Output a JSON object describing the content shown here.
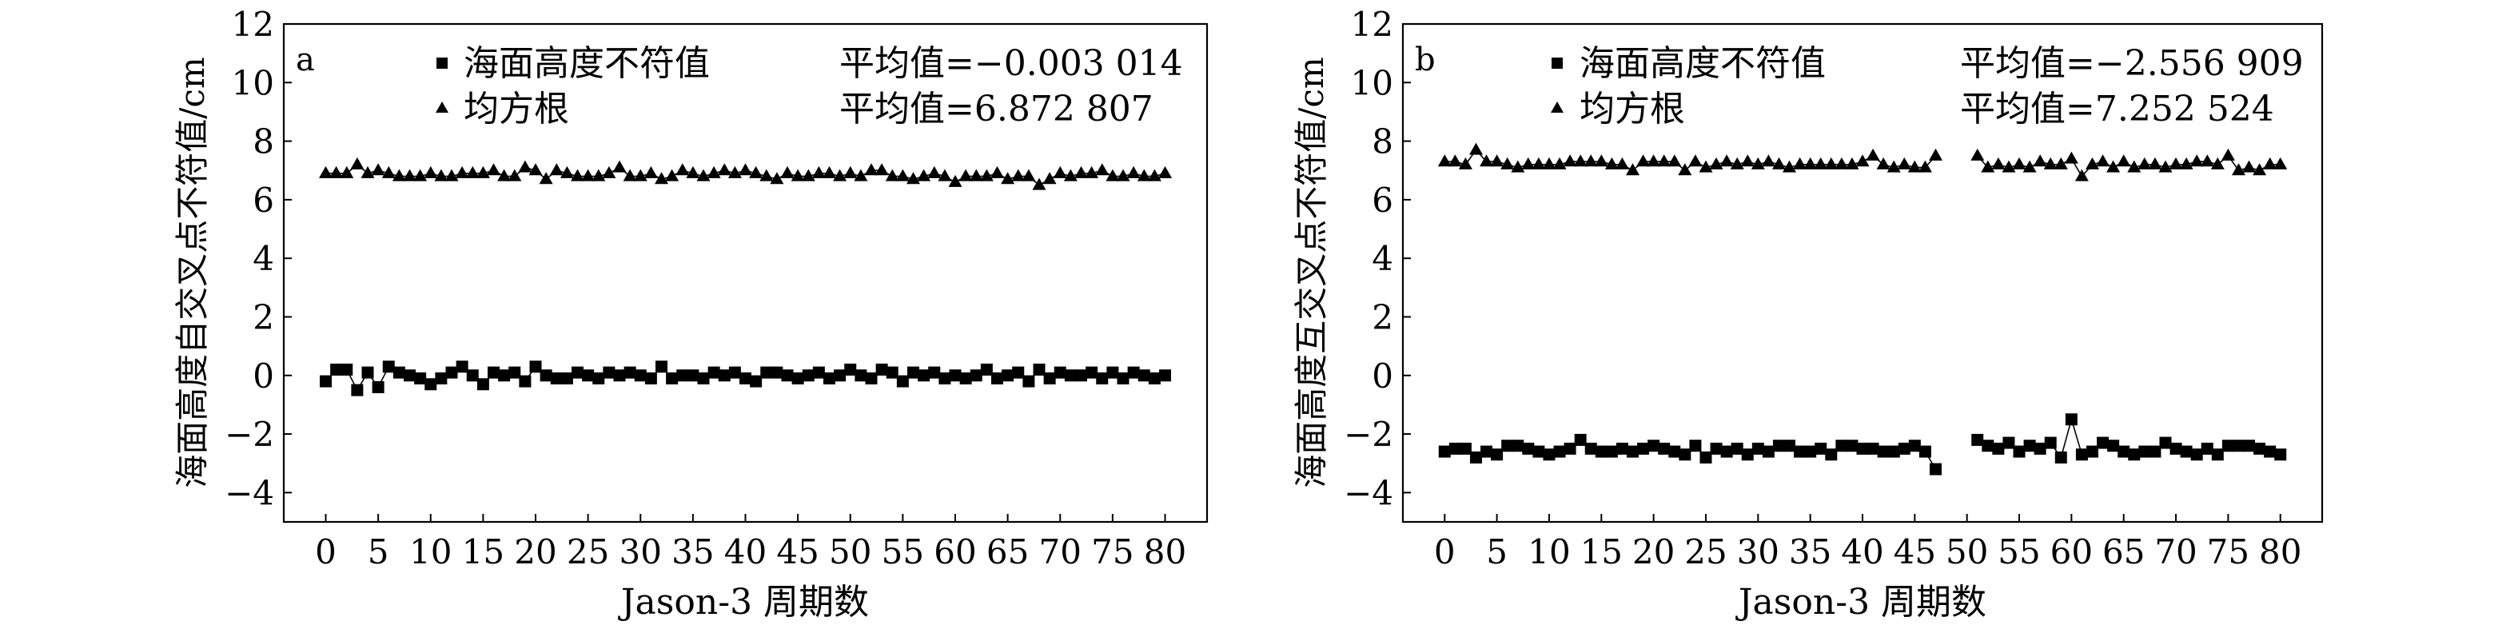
{
  "chart_data": [
    {
      "type": "scatter",
      "panel_label": "a",
      "xlabel": "Jason-3 周期数",
      "ylabel": "海面高度自交叉点不符值/cm",
      "xlim": [
        -4,
        84
      ],
      "ylim": [
        -5,
        12
      ],
      "xticks": [
        0,
        5,
        10,
        15,
        20,
        25,
        30,
        35,
        40,
        45,
        50,
        55,
        60,
        65,
        70,
        75,
        80
      ],
      "yticks": [
        -4,
        -2,
        0,
        2,
        4,
        6,
        8,
        10,
        12
      ],
      "grid": false,
      "legend": "top",
      "series": [
        {
          "name": "海面高度不符值",
          "marker": "square",
          "stat_label": "平均值=−0.003 014",
          "x": [
            0,
            1,
            2,
            3,
            4,
            5,
            6,
            7,
            8,
            9,
            10,
            11,
            12,
            13,
            14,
            15,
            16,
            17,
            18,
            19,
            20,
            21,
            22,
            23,
            24,
            25,
            26,
            27,
            28,
            29,
            30,
            31,
            32,
            33,
            34,
            35,
            36,
            37,
            38,
            39,
            40,
            41,
            42,
            43,
            44,
            45,
            46,
            47,
            48,
            49,
            50,
            51,
            52,
            53,
            54,
            55,
            56,
            57,
            58,
            59,
            60,
            61,
            62,
            63,
            64,
            65,
            66,
            67,
            68,
            69,
            70,
            71,
            72,
            73,
            74,
            75,
            76,
            77,
            78,
            79,
            80
          ],
          "values": [
            -0.2,
            0.2,
            0.2,
            -0.5,
            0.1,
            -0.4,
            0.3,
            0.1,
            0.0,
            -0.1,
            -0.3,
            -0.1,
            0.1,
            0.3,
            0.0,
            -0.3,
            0.1,
            0.0,
            0.1,
            -0.2,
            0.3,
            0.0,
            -0.1,
            -0.1,
            0.1,
            0.0,
            -0.1,
            0.1,
            0.0,
            0.1,
            0.0,
            -0.1,
            0.3,
            -0.1,
            0.0,
            0.0,
            -0.1,
            0.1,
            0.0,
            0.1,
            -0.1,
            -0.2,
            0.1,
            0.1,
            0.0,
            -0.1,
            0.0,
            0.1,
            -0.1,
            0.0,
            0.2,
            0.0,
            -0.1,
            0.2,
            0.1,
            -0.2,
            0.1,
            0.0,
            0.1,
            -0.1,
            0.0,
            -0.1,
            0.0,
            0.2,
            -0.1,
            0.0,
            0.1,
            -0.2,
            0.2,
            -0.1,
            0.1,
            0.0,
            0.0,
            0.1,
            -0.1,
            0.1,
            -0.1,
            0.1,
            0.0,
            -0.1,
            0.0
          ]
        },
        {
          "name": "均方根",
          "marker": "triangle",
          "stat_label": "平均值=6.872 807",
          "x": [
            0,
            1,
            2,
            3,
            4,
            5,
            6,
            7,
            8,
            9,
            10,
            11,
            12,
            13,
            14,
            15,
            16,
            17,
            18,
            19,
            20,
            21,
            22,
            23,
            24,
            25,
            26,
            27,
            28,
            29,
            30,
            31,
            32,
            33,
            34,
            35,
            36,
            37,
            38,
            39,
            40,
            41,
            42,
            43,
            44,
            45,
            46,
            47,
            48,
            49,
            50,
            51,
            52,
            53,
            54,
            55,
            56,
            57,
            58,
            59,
            60,
            61,
            62,
            63,
            64,
            65,
            66,
            67,
            68,
            69,
            70,
            71,
            72,
            73,
            74,
            75,
            76,
            77,
            78,
            79,
            80
          ],
          "values": [
            6.9,
            6.9,
            6.9,
            7.2,
            6.9,
            7.0,
            6.9,
            6.8,
            6.8,
            6.8,
            6.9,
            6.8,
            6.8,
            6.9,
            6.9,
            6.9,
            7.0,
            6.8,
            6.8,
            7.1,
            7.0,
            6.7,
            7.0,
            6.9,
            6.8,
            6.8,
            6.8,
            6.9,
            7.1,
            6.8,
            6.8,
            6.9,
            6.7,
            6.8,
            7.0,
            6.9,
            6.8,
            6.9,
            7.0,
            6.9,
            7.0,
            6.9,
            6.8,
            6.7,
            6.9,
            6.8,
            6.8,
            6.9,
            6.9,
            6.8,
            6.9,
            6.8,
            7.0,
            7.0,
            6.8,
            6.8,
            6.7,
            6.8,
            6.9,
            6.8,
            6.6,
            6.8,
            6.8,
            6.8,
            6.9,
            6.7,
            6.8,
            6.8,
            6.5,
            6.7,
            6.9,
            6.8,
            6.9,
            6.9,
            7.0,
            6.8,
            6.8,
            6.9,
            6.8,
            6.8,
            6.9
          ]
        }
      ]
    },
    {
      "type": "scatter",
      "panel_label": "b",
      "xlabel": "Jason-3 周期数",
      "ylabel": "海面高度互交叉点不符值/cm",
      "xlim": [
        -4,
        84
      ],
      "ylim": [
        -5,
        12
      ],
      "xticks": [
        0,
        5,
        10,
        15,
        20,
        25,
        30,
        35,
        40,
        45,
        50,
        55,
        60,
        65,
        70,
        75,
        80
      ],
      "yticks": [
        -4,
        -2,
        0,
        2,
        4,
        6,
        8,
        10,
        12
      ],
      "grid": false,
      "legend": "top",
      "series": [
        {
          "name": "海面高度不符值",
          "marker": "square",
          "stat_label": "平均值=−2.556 909",
          "x": [
            0,
            1,
            2,
            3,
            4,
            5,
            6,
            7,
            8,
            9,
            10,
            11,
            12,
            13,
            14,
            15,
            16,
            17,
            18,
            19,
            20,
            21,
            22,
            23,
            24,
            25,
            26,
            27,
            28,
            29,
            30,
            31,
            32,
            33,
            34,
            35,
            36,
            37,
            38,
            39,
            40,
            41,
            42,
            43,
            44,
            45,
            46,
            47,
            51,
            52,
            53,
            54,
            55,
            56,
            57,
            58,
            59,
            60,
            61,
            62,
            63,
            64,
            65,
            66,
            67,
            68,
            69,
            70,
            71,
            72,
            73,
            74,
            75,
            76,
            77,
            78,
            79,
            80
          ],
          "values": [
            -2.6,
            -2.5,
            -2.5,
            -2.8,
            -2.6,
            -2.7,
            -2.4,
            -2.4,
            -2.5,
            -2.6,
            -2.7,
            -2.6,
            -2.5,
            -2.2,
            -2.5,
            -2.6,
            -2.6,
            -2.5,
            -2.6,
            -2.5,
            -2.4,
            -2.5,
            -2.6,
            -2.7,
            -2.4,
            -2.8,
            -2.5,
            -2.6,
            -2.5,
            -2.7,
            -2.5,
            -2.6,
            -2.4,
            -2.4,
            -2.6,
            -2.6,
            -2.5,
            -2.7,
            -2.4,
            -2.4,
            -2.5,
            -2.5,
            -2.6,
            -2.6,
            -2.5,
            -2.4,
            -2.6,
            -3.2,
            -2.2,
            -2.4,
            -2.5,
            -2.3,
            -2.6,
            -2.4,
            -2.5,
            -2.3,
            -2.8,
            -1.5,
            -2.7,
            -2.6,
            -2.3,
            -2.4,
            -2.6,
            -2.7,
            -2.6,
            -2.6,
            -2.3,
            -2.5,
            -2.6,
            -2.7,
            -2.5,
            -2.7,
            -2.4,
            -2.4,
            -2.4,
            -2.5,
            -2.6,
            -2.7
          ]
        },
        {
          "name": "均方根",
          "marker": "triangle",
          "stat_label": "平均值=7.252 524",
          "x": [
            0,
            1,
            2,
            3,
            4,
            5,
            6,
            7,
            8,
            9,
            10,
            11,
            12,
            13,
            14,
            15,
            16,
            17,
            18,
            19,
            20,
            21,
            22,
            23,
            24,
            25,
            26,
            27,
            28,
            29,
            30,
            31,
            32,
            33,
            34,
            35,
            36,
            37,
            38,
            39,
            40,
            41,
            42,
            43,
            44,
            45,
            46,
            47,
            51,
            52,
            53,
            54,
            55,
            56,
            57,
            58,
            59,
            60,
            61,
            62,
            63,
            64,
            65,
            66,
            67,
            68,
            69,
            70,
            71,
            72,
            73,
            74,
            75,
            76,
            77,
            78,
            79,
            80
          ],
          "values": [
            7.3,
            7.3,
            7.2,
            7.7,
            7.3,
            7.3,
            7.2,
            7.1,
            7.2,
            7.2,
            7.2,
            7.2,
            7.3,
            7.3,
            7.3,
            7.3,
            7.2,
            7.2,
            7.0,
            7.3,
            7.3,
            7.3,
            7.3,
            7.0,
            7.3,
            7.1,
            7.2,
            7.3,
            7.2,
            7.3,
            7.2,
            7.3,
            7.2,
            7.1,
            7.2,
            7.2,
            7.2,
            7.2,
            7.2,
            7.2,
            7.3,
            7.5,
            7.2,
            7.1,
            7.2,
            7.1,
            7.1,
            7.5,
            7.5,
            7.1,
            7.2,
            7.1,
            7.2,
            7.1,
            7.3,
            7.2,
            7.2,
            7.4,
            6.8,
            7.2,
            7.3,
            7.1,
            7.3,
            7.1,
            7.2,
            7.2,
            7.1,
            7.2,
            7.2,
            7.3,
            7.3,
            7.2,
            7.5,
            7.0,
            7.1,
            7.0,
            7.2,
            7.2
          ]
        }
      ]
    }
  ]
}
